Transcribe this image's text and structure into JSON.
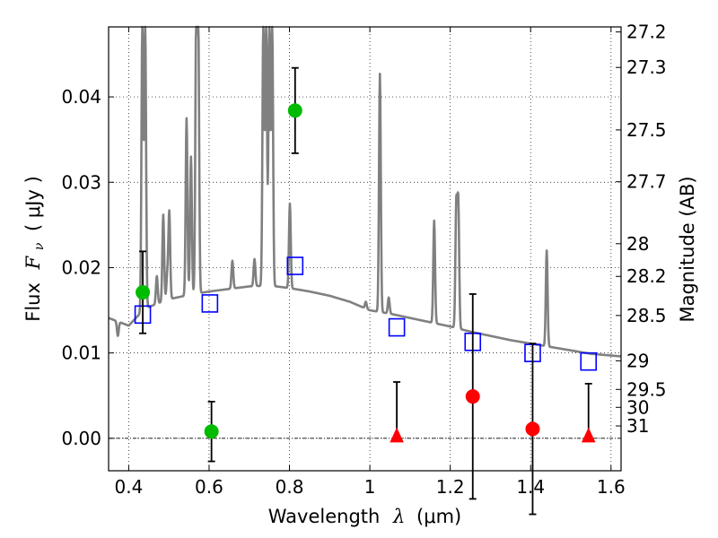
{
  "chart_data": {
    "type": "scatter",
    "xlabel": "Wavelength",
    "xlabel_symbol": "λ",
    "xlabel_unit": "(μm)",
    "ylabel": "Flux",
    "ylabel_symbol": "F",
    "ylabel_symbol_sub": "ν",
    "ylabel_unit": "( μJy )",
    "y2label": "Magnitude (AB)",
    "xlim": [
      0.35,
      1.625
    ],
    "ylim": [
      -0.0038,
      0.0482
    ],
    "grid": true,
    "x_ticks": [
      {
        "value": 0.4,
        "label": "0.4"
      },
      {
        "value": 0.6,
        "label": "0.6"
      },
      {
        "value": 0.8,
        "label": "0.8"
      },
      {
        "value": 1.0,
        "label": "1"
      },
      {
        "value": 1.2,
        "label": "1.2"
      },
      {
        "value": 1.4,
        "label": "1.4"
      },
      {
        "value": 1.6,
        "label": "1.6"
      }
    ],
    "y_ticks": [
      {
        "value": 0.0,
        "label": "0.00"
      },
      {
        "value": 0.01,
        "label": "0.01"
      },
      {
        "value": 0.02,
        "label": "0.02"
      },
      {
        "value": 0.03,
        "label": "0.03"
      },
      {
        "value": 0.04,
        "label": "0.04"
      }
    ],
    "mag_ticks": [
      {
        "label": "27.2",
        "flux": 0.04761
      },
      {
        "label": "27.3",
        "flux": 0.04345
      },
      {
        "label": "27.5",
        "flux": 0.03613
      },
      {
        "label": "27.7",
        "flux": 0.03006
      },
      {
        "label": "28",
        "flux": 0.0228
      },
      {
        "label": "28.2",
        "flux": 0.01897
      },
      {
        "label": "28.5",
        "flux": 0.01439
      },
      {
        "label": "29",
        "flux": 0.00908
      },
      {
        "label": "29.5",
        "flux": 0.00573
      },
      {
        "label": "30",
        "flux": 0.00363
      },
      {
        "label": "31",
        "flux": 0.00145
      }
    ],
    "zero_line": 0.0,
    "model_continuum": [
      [
        0.35,
        0.0141
      ],
      [
        0.4,
        0.0132
      ],
      [
        0.44,
        0.0152
      ],
      [
        0.5,
        0.0163
      ],
      [
        0.55,
        0.0168
      ],
      [
        0.6,
        0.0172
      ],
      [
        0.65,
        0.0175
      ],
      [
        0.7,
        0.0178
      ],
      [
        0.75,
        0.0179
      ],
      [
        0.8,
        0.0176
      ],
      [
        0.85,
        0.0172
      ],
      [
        0.9,
        0.0167
      ],
      [
        0.95,
        0.016
      ],
      [
        1.0,
        0.015
      ],
      [
        1.05,
        0.0146
      ],
      [
        1.1,
        0.0141
      ],
      [
        1.15,
        0.0136
      ],
      [
        1.2,
        0.0131
      ],
      [
        1.25,
        0.0125
      ],
      [
        1.3,
        0.012
      ],
      [
        1.35,
        0.0115
      ],
      [
        1.4,
        0.0111
      ],
      [
        1.45,
        0.0107
      ],
      [
        1.5,
        0.0103
      ],
      [
        1.55,
        0.0099
      ],
      [
        1.6,
        0.0097
      ],
      [
        1.625,
        0.0096
      ]
    ],
    "model_lines": [
      {
        "x": 0.373,
        "peak": 0.012
      },
      {
        "x": 0.434,
        "peak": 0.049
      },
      {
        "x": 0.441,
        "peak": 0.049
      },
      {
        "x": 0.47,
        "peak": 0.019
      },
      {
        "x": 0.486,
        "peak": 0.0262
      },
      {
        "x": 0.496,
        "peak": 0.019
      },
      {
        "x": 0.501,
        "peak": 0.0265
      },
      {
        "x": 0.544,
        "peak": 0.0375
      },
      {
        "x": 0.555,
        "peak": 0.033
      },
      {
        "x": 0.568,
        "peak": 0.049
      },
      {
        "x": 0.573,
        "peak": 0.049
      },
      {
        "x": 0.658,
        "peak": 0.0208
      },
      {
        "x": 0.713,
        "peak": 0.021
      },
      {
        "x": 0.735,
        "peak": 0.049
      },
      {
        "x": 0.742,
        "peak": 0.049
      },
      {
        "x": 0.75,
        "peak": 0.049
      },
      {
        "x": 0.757,
        "peak": 0.049
      },
      {
        "x": 0.801,
        "peak": 0.0275
      },
      {
        "x": 0.99,
        "peak": 0.016
      },
      {
        "x": 1.025,
        "peak": 0.0427
      },
      {
        "x": 1.047,
        "peak": 0.0165
      },
      {
        "x": 1.16,
        "peak": 0.0255
      },
      {
        "x": 1.215,
        "peak": 0.0272
      },
      {
        "x": 1.22,
        "peak": 0.0275
      },
      {
        "x": 1.44,
        "peak": 0.022
      }
    ],
    "series": [
      {
        "name": "",
        "marker": "open-square",
        "color": "#0000ff",
        "points": [
          {
            "x": 0.435,
            "y": 0.0145
          },
          {
            "x": 0.602,
            "y": 0.0158
          },
          {
            "x": 0.814,
            "y": 0.0202
          },
          {
            "x": 1.067,
            "y": 0.013
          },
          {
            "x": 1.256,
            "y": 0.0113
          },
          {
            "x": 1.405,
            "y": 0.01
          },
          {
            "x": 1.544,
            "y": 0.009
          }
        ]
      },
      {
        "name": "",
        "marker": "filled-circle",
        "color": "#00bb00",
        "points": [
          {
            "x": 0.435,
            "y": 0.0171,
            "err": 0.0048
          },
          {
            "x": 0.606,
            "y": 0.0008,
            "err": 0.0035
          },
          {
            "x": 0.814,
            "y": 0.0384,
            "err": 0.005
          }
        ]
      },
      {
        "name": "",
        "marker": "filled-circle",
        "color": "#ff0000",
        "points": [
          {
            "x": 1.256,
            "y": 0.0049,
            "err": 0.012
          },
          {
            "x": 1.405,
            "y": 0.0011,
            "err": 0.01
          }
        ]
      },
      {
        "name": "",
        "marker": "filled-triangle",
        "color": "#ff0000",
        "points": [
          {
            "x": 1.067,
            "y": 0.0,
            "err_up": 0.0066
          },
          {
            "x": 1.544,
            "y": 0.0,
            "err_up": 0.0064
          }
        ]
      }
    ],
    "colors": {
      "model": "#808080",
      "grid": "#000000"
    }
  }
}
